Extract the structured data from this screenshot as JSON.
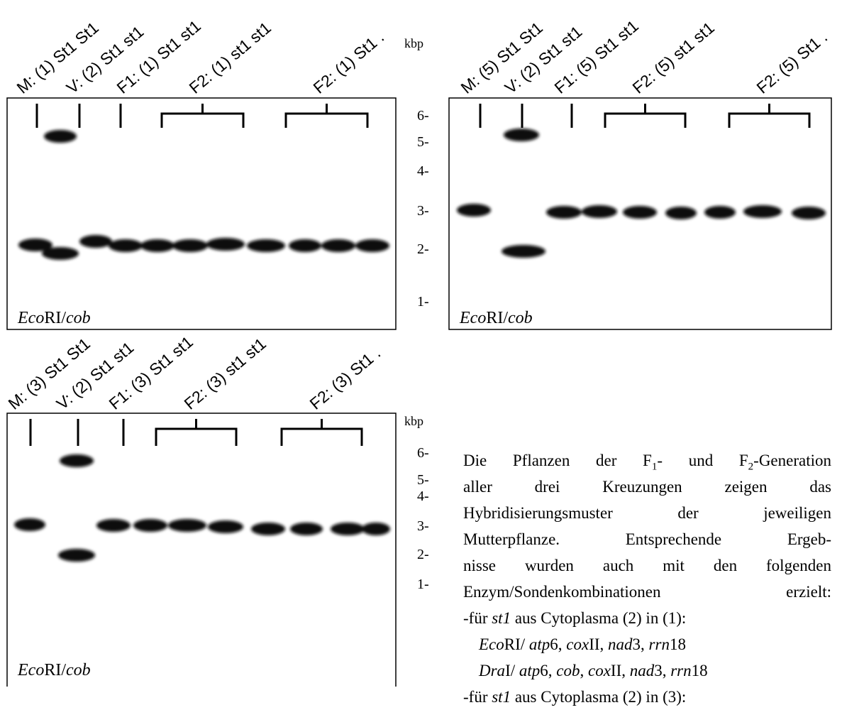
{
  "rows": [
    {
      "panels": [
        {
          "lanes": [
            "M: (1) St1 St1",
            "V: (2) St1 st1",
            "F1: (1) St1 st1",
            "F2: (1) st1 st1",
            "F2: (1) St1 ."
          ],
          "caption": [
            "Eco",
            "RI/",
            "cob"
          ]
        },
        {
          "lanes": [
            "M: (5) St1 St1",
            "V: (2) St1 st1",
            "F1: (5) St1 st1",
            "F2: (5) st1 st1",
            "F2: (5) St1 ."
          ],
          "caption": [
            "Eco",
            "RI/",
            "cob"
          ]
        }
      ],
      "scale": {
        "unit": "kbp",
        "marks": [
          "6-",
          "5-",
          "4-",
          "3-",
          "2-",
          "1-"
        ]
      }
    },
    {
      "panels": [
        {
          "lanes": [
            "M: (3) St1 St1",
            "V: (2) St1 st1",
            "F1: (3) St1 st1",
            "F2: (3) st1 st1",
            "F2: (3) St1 ."
          ],
          "caption": [
            "Eco",
            "RI/",
            "cob"
          ]
        }
      ],
      "scale": {
        "unit": "kbp",
        "marks": [
          "6-",
          "5-",
          "4-",
          "3-",
          "2-",
          "1-"
        ]
      }
    }
  ],
  "text": {
    "paragraph": [
      [
        {
          "text": "Die Pflanzen der F"
        },
        {
          "text": "1",
          "style": "sub"
        },
        {
          "text": "- und F"
        },
        {
          "text": "2",
          "style": "sub"
        },
        {
          "text": "-Generation"
        }
      ],
      [
        {
          "text": "aller drei Kreuzungen zeigen das"
        }
      ],
      [
        {
          "text": "Hybridisierungsmuster der jeweiligen"
        }
      ],
      [
        {
          "text": "Mutterpflanze. Entsprechende Ergeb-"
        }
      ],
      [
        {
          "text": "nisse wurden auch mit den folgenden"
        }
      ],
      [
        {
          "text": "Enzym/Sondenkombinationen erzielt:"
        }
      ]
    ],
    "lists": [
      {
        "heading": [
          {
            "text": "-für "
          },
          {
            "text": "st1",
            "style": "italic"
          },
          {
            "text": " aus Cytoplasma (2) in (1):"
          }
        ],
        "items": [
          [
            {
              "text": "Eco",
              "style": "italic"
            },
            {
              "text": "RI/ "
            },
            {
              "text": "atp",
              "style": "italic"
            },
            {
              "text": "6, "
            },
            {
              "text": "cox",
              "style": "italic"
            },
            {
              "text": "II, "
            },
            {
              "text": "nad",
              "style": "italic"
            },
            {
              "text": "3, "
            },
            {
              "text": "rrn",
              "style": "italic"
            },
            {
              "text": "18"
            }
          ],
          [
            {
              "text": "Dra",
              "style": "italic"
            },
            {
              "text": "I/ "
            },
            {
              "text": "atp",
              "style": "italic"
            },
            {
              "text": "6, "
            },
            {
              "text": "cob",
              "style": "italic"
            },
            {
              "text": ", "
            },
            {
              "text": "cox",
              "style": "italic"
            },
            {
              "text": "II, "
            },
            {
              "text": "nad",
              "style": "italic"
            },
            {
              "text": "3, "
            },
            {
              "text": "rrn",
              "style": "italic"
            },
            {
              "text": "18"
            }
          ]
        ]
      },
      {
        "heading": [
          {
            "text": "-für "
          },
          {
            "text": "st1",
            "style": "italic"
          },
          {
            "text": " aus Cytoplasma (2) in (3):"
          }
        ]
      }
    ]
  }
}
